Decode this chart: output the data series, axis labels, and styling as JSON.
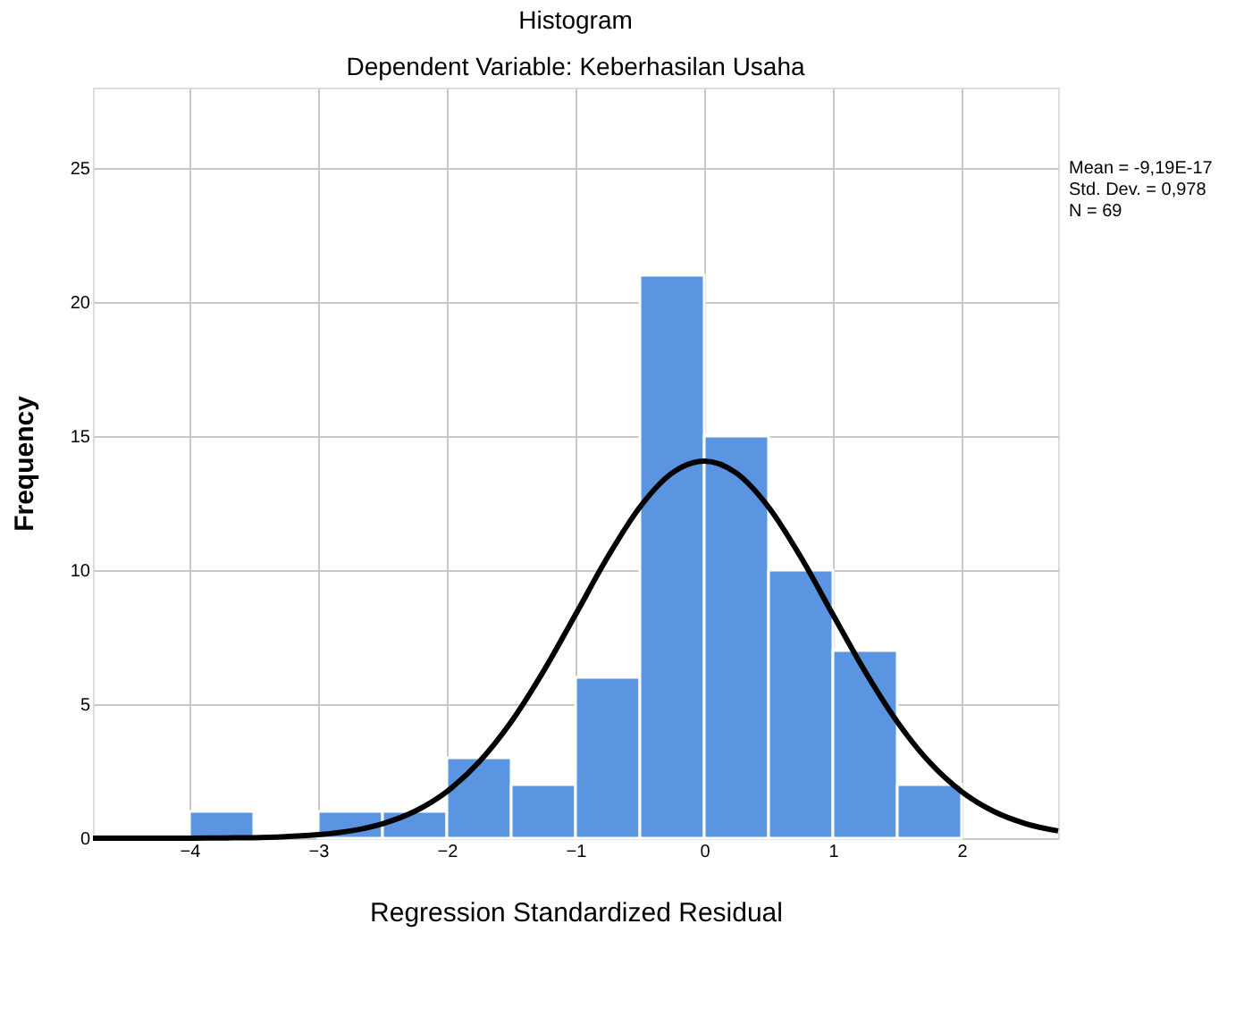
{
  "chart_data": {
    "type": "histogram",
    "title": "Histogram",
    "subtitle": "Dependent Variable: Keberhasilan Usaha",
    "xlabel": "Regression Standardized Residual",
    "ylabel": "Frequency",
    "bins": [
      -4,
      -3.5,
      -3,
      -2.5,
      -2,
      -1.5,
      -1,
      -0.5,
      0,
      0.5,
      1,
      1.5,
      2
    ],
    "values": [
      1,
      0,
      1,
      1,
      3,
      2,
      6,
      21,
      15,
      10,
      7,
      2
    ],
    "color": "#5b95e2",
    "series": [
      {
        "type": "line",
        "color": "#000000",
        "x": [
          -4.75,
          -4.5,
          -4.25,
          -4,
          -3.75,
          -3.5,
          -3.25,
          -3,
          -2.75,
          -2.5,
          -2.25,
          -2,
          -1.75,
          -1.5,
          -1.25,
          -1,
          -0.75,
          -0.5,
          -0.25,
          0,
          0.25,
          0.5,
          0.75,
          1,
          1.25,
          1.5,
          1.75,
          2,
          2.25,
          2.5,
          2.75
        ],
        "values": [
          0,
          0,
          0,
          0,
          0.01,
          0.02,
          0.06,
          0.13,
          0.27,
          0.54,
          1.0,
          1.74,
          2.84,
          4.34,
          6.22,
          8.34,
          10.49,
          12.35,
          13.62,
          14.07,
          13.62,
          12.35,
          10.49,
          8.34,
          6.22,
          4.34,
          2.84,
          1.74,
          1.0,
          0.54,
          0.27
        ]
      }
    ],
    "xlim": [
      -4.75,
      2.75
    ],
    "xticks": [
      -4,
      -3,
      -2,
      -1,
      0,
      1,
      2
    ],
    "ylim": [
      0,
      28
    ],
    "yticks": [
      0,
      5,
      10,
      15,
      20,
      25
    ],
    "grid": true,
    "annotations": [
      "Mean = -9,19E-17",
      "Std. Dev. = 0,978",
      "N = 69"
    ]
  }
}
